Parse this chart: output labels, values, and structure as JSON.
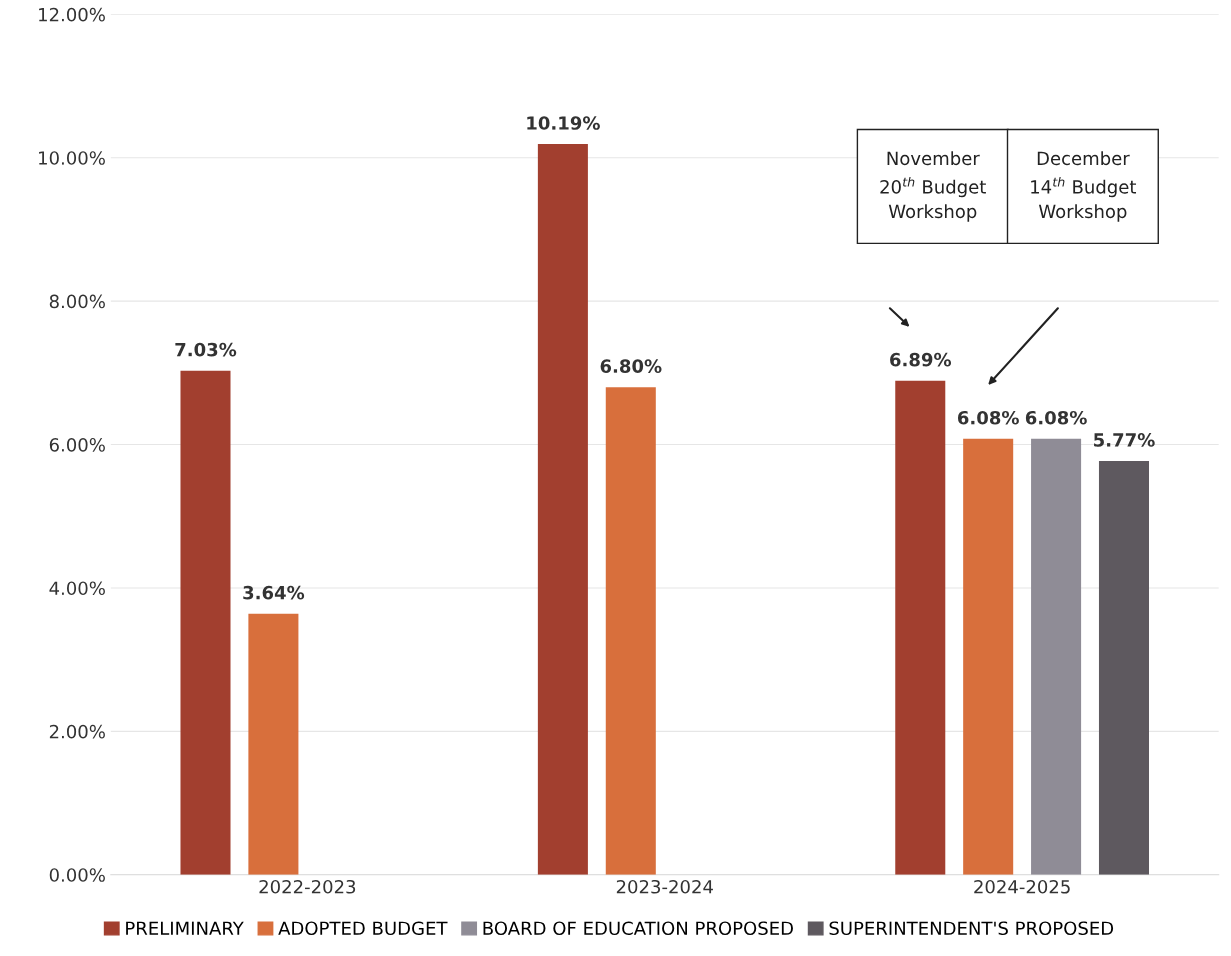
{
  "chart_data": {
    "type": "bar",
    "categories": [
      "2022-2023",
      "2023-2024",
      "2024-2025"
    ],
    "series": [
      {
        "name": "PRELIMINARY",
        "color": "#a23f2f",
        "values": [
          7.03,
          10.19,
          6.89
        ]
      },
      {
        "name": "ADOPTED BUDGET",
        "color": "#d86f3c",
        "values": [
          3.64,
          6.8,
          6.08
        ]
      },
      {
        "name": "BOARD OF EDUCATION PROPOSED",
        "color": "#8f8c96",
        "values": [
          null,
          null,
          6.08
        ]
      },
      {
        "name": "SUPERINTENDENT'S PROPOSED",
        "color": "#5e595f",
        "values": [
          null,
          null,
          5.77
        ]
      }
    ],
    "value_labels": [
      [
        "7.03%",
        "10.19%",
        "6.89%"
      ],
      [
        "3.64%",
        "6.80%",
        "6.08%"
      ],
      [
        null,
        null,
        "6.08%"
      ],
      [
        null,
        null,
        "5.77%"
      ]
    ],
    "ylim": [
      0,
      12
    ],
    "yticks": [
      {
        "value": 0,
        "label": "0.00%"
      },
      {
        "value": 2,
        "label": "2.00%"
      },
      {
        "value": 4,
        "label": "4.00%"
      },
      {
        "value": 6,
        "label": "6.00%"
      },
      {
        "value": 8,
        "label": "8.00%"
      },
      {
        "value": 10,
        "label": "10.00%"
      },
      {
        "value": 12,
        "label": "12.00%"
      }
    ],
    "grid": "y",
    "legend": "bottom",
    "annotations": [
      "November\n20$^{th}$ Budget\nWorkshop",
      "December\n14$^{th}$ Budget\nWorkshop"
    ]
  }
}
